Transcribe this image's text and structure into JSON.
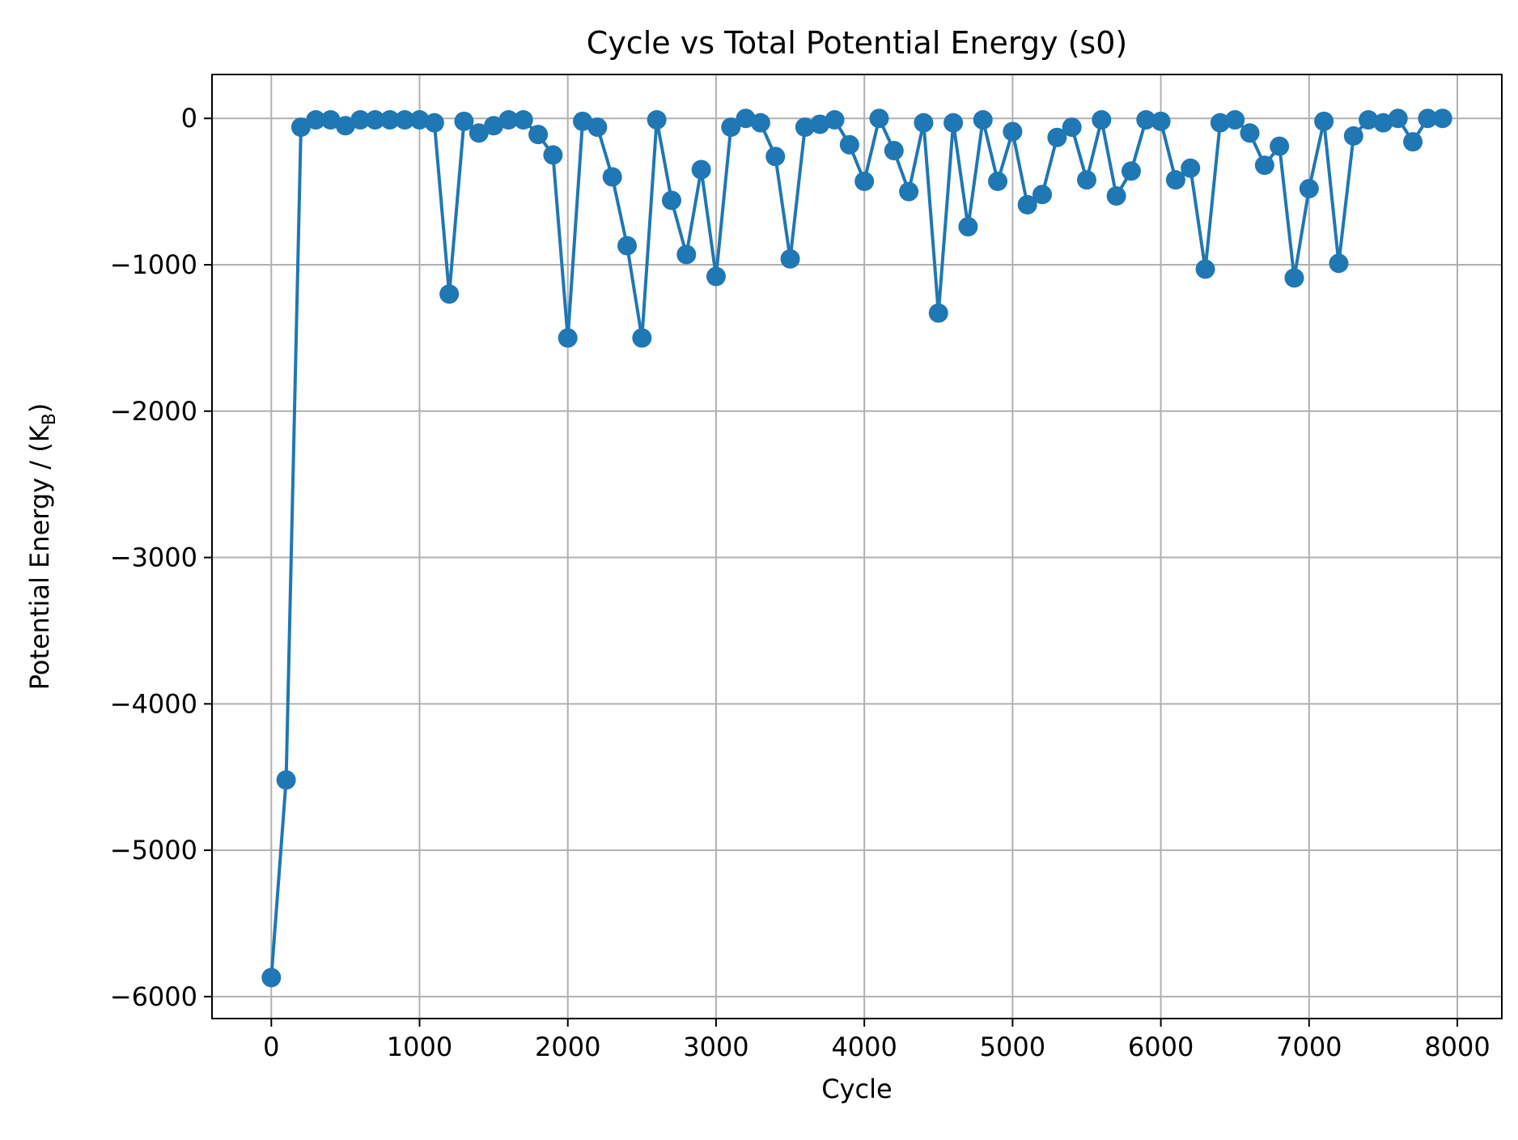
{
  "chart_data": {
    "type": "line",
    "title": "Cycle vs Total Potential Energy (s0)",
    "xlabel": "Cycle",
    "ylabel": "Potential Energy / (K",
    "ylabel_sub": "B",
    "ylabel_close": ")",
    "xlim": [
      -400,
      8300
    ],
    "ylim": [
      -6150,
      300
    ],
    "xticks": [
      0,
      1000,
      2000,
      3000,
      4000,
      5000,
      6000,
      7000,
      8000
    ],
    "xtick_labels": [
      "0",
      "1000",
      "2000",
      "3000",
      "4000",
      "5000",
      "6000",
      "7000",
      "8000"
    ],
    "yticks": [
      0,
      -1000,
      -2000,
      -3000,
      -4000,
      -5000,
      -6000
    ],
    "ytick_labels": [
      "0",
      "−1000",
      "−2000",
      "−3000",
      "−4000",
      "−5000",
      "−6000"
    ],
    "grid": true,
    "marker": "circle",
    "color": "#1f77b4",
    "series": [
      {
        "x": [
          0,
          100,
          200,
          300,
          400,
          500,
          600,
          700,
          800,
          900,
          1000,
          1100,
          1200,
          1300,
          1400,
          1500,
          1600,
          1700,
          1800,
          1900,
          2000,
          2100,
          2200,
          2300,
          2400,
          2500,
          2600,
          2700,
          2800,
          2900,
          3000,
          3100,
          3200,
          3300,
          3400,
          3500,
          3600,
          3700,
          3800,
          3900,
          4000,
          4100,
          4200,
          4300,
          4400,
          4500,
          4600,
          4700,
          4800,
          4900,
          5000,
          5100,
          5200,
          5300,
          5400,
          5500,
          5600,
          5700,
          5800,
          5900,
          6000,
          6100,
          6200,
          6300,
          6400,
          6500,
          6600,
          6700,
          6800,
          6900,
          7000,
          7100,
          7200,
          7300,
          7400,
          7500,
          7600,
          7700,
          7800,
          7900
        ],
        "y": [
          -5870,
          -4520,
          -60,
          -10,
          -10,
          -50,
          -10,
          -10,
          -10,
          -10,
          -10,
          -30,
          -1200,
          -20,
          -100,
          -50,
          -10,
          -10,
          -110,
          -250,
          -1500,
          -20,
          -60,
          -400,
          -870,
          -1500,
          -10,
          -560,
          -930,
          -350,
          -1080,
          -60,
          0,
          -30,
          -260,
          -960,
          -60,
          -40,
          -10,
          -180,
          -430,
          0,
          -220,
          -500,
          -30,
          -1330,
          -30,
          -740,
          -10,
          -430,
          -90,
          -590,
          -520,
          -130,
          -60,
          -420,
          -10,
          -530,
          -360,
          -10,
          -20,
          -420,
          -340,
          -1030,
          -30,
          -10,
          -100,
          -320,
          -190,
          -1090,
          -480,
          -20,
          -990,
          -120,
          -10,
          -30,
          0,
          -160,
          0,
          0
        ]
      }
    ]
  }
}
